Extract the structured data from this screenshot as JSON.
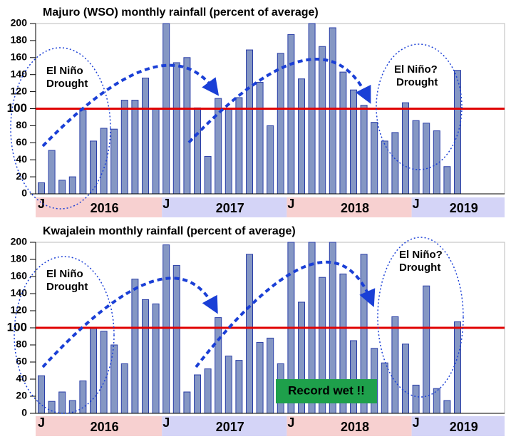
{
  "chart_data": [
    {
      "type": "bar",
      "title": "Majuro (WSO) monthly rainfall (percent of average)",
      "categories": [
        "J",
        null,
        null,
        null,
        null,
        null,
        null,
        null,
        null,
        null,
        null,
        null,
        "J",
        null,
        null,
        null,
        null,
        null,
        null,
        null,
        null,
        null,
        null,
        null,
        "J",
        null,
        null,
        null,
        null,
        null,
        null,
        null,
        null,
        null,
        null,
        null,
        "J",
        null,
        null,
        null,
        null
      ],
      "values": [
        13,
        51,
        16,
        20,
        98,
        62,
        77,
        76,
        110,
        110,
        136,
        100,
        200,
        154,
        160,
        101,
        44,
        112,
        100,
        113,
        169,
        131,
        80,
        165,
        187,
        135,
        200,
        173,
        195,
        143,
        122,
        104,
        84,
        62,
        72,
        107,
        86,
        83,
        74,
        32,
        145
      ],
      "year_labels": [
        "2016",
        "2017",
        "2018",
        "2019"
      ],
      "ylim": [
        0,
        200
      ],
      "yticks": [
        0,
        20,
        40,
        60,
        80,
        100,
        120,
        140,
        160,
        180,
        200
      ],
      "reference_line": 100,
      "color": "#8597c4",
      "annotations": [
        [
          "El Niño",
          "Drought"
        ],
        [
          "El Niño?",
          "Drought"
        ]
      ]
    },
    {
      "type": "bar",
      "title": "Kwajalein monthly rainfall (percent of average)",
      "categories": [
        "J",
        null,
        null,
        null,
        null,
        null,
        null,
        null,
        null,
        null,
        null,
        null,
        "J",
        null,
        null,
        null,
        null,
        null,
        null,
        null,
        null,
        null,
        null,
        null,
        "J",
        null,
        null,
        null,
        null,
        null,
        null,
        null,
        null,
        null,
        null,
        null,
        "J",
        null,
        null,
        null,
        null
      ],
      "values": [
        44,
        14,
        25,
        15,
        38,
        100,
        96,
        80,
        58,
        157,
        133,
        128,
        197,
        173,
        25,
        45,
        52,
        112,
        67,
        62,
        186,
        83,
        88,
        58,
        200,
        130,
        200,
        159,
        200,
        163,
        85,
        186,
        76,
        59,
        113,
        81,
        33,
        149,
        29,
        15,
        107
      ],
      "year_labels": [
        "2016",
        "2017",
        "2018",
        "2019"
      ],
      "ylim": [
        0,
        200
      ],
      "yticks": [
        0,
        20,
        40,
        60,
        80,
        100,
        120,
        140,
        160,
        180,
        200
      ],
      "reference_line": 100,
      "color": "#8597c4",
      "annotations": [
        [
          "El Niño",
          "Drought"
        ],
        [
          "El Niño?",
          "Drought"
        ],
        [
          "Record wet !!"
        ]
      ]
    }
  ]
}
